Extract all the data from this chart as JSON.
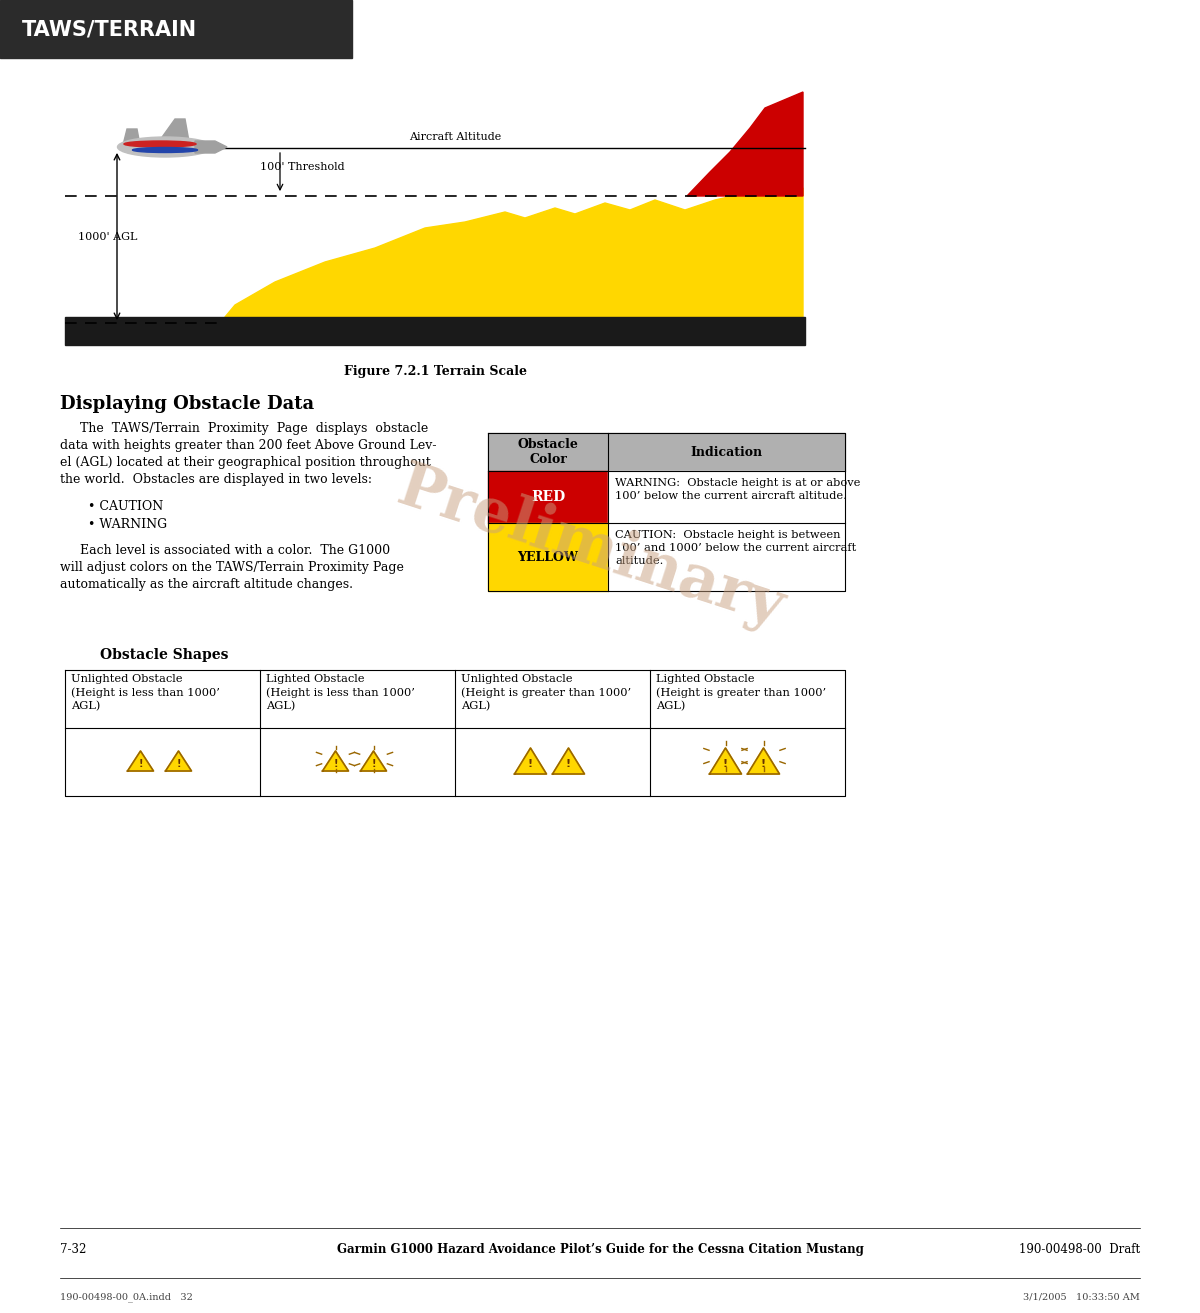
{
  "bg_color": "#ffffff",
  "header_bg": "#2b2b2b",
  "header_text": "TAWS/TERRAIN",
  "header_text_color": "#ffffff",
  "figure_caption": "Figure 7.2.1 Terrain Scale",
  "section_title": "Displaying Obstacle Data",
  "body_text1": "     The  TAWS/Terrain  Proximity  Page  displays  obstacle\ndata with heights greater than 200 feet Above Ground Lev-\nel (AGL) located at their geographical position throughout\nthe world.  Obstacles are displayed in two levels:",
  "bullet1": "• CAUTION",
  "bullet2": "• WARNING",
  "body_text2": "     Each level is associated with a color.  The G1000\nwill adjust colors on the TAWS/Terrain Proximity Page\nautomatically as the aircraft altitude changes.",
  "obstacle_section_title": "Obstacle Shapes",
  "terrain_yellow": "#FFD700",
  "terrain_red": "#CC0000",
  "terrain_black": "#1a1a1a",
  "aircraft_alt_label": "Aircraft Altitude",
  "threshold_label": "100' Threshold",
  "agl_label": "1000' AGL",
  "table_header_bg": "#b0b0b0",
  "table_red_bg": "#cc0000",
  "table_yellow_bg": "#FFD700",
  "table_col1_header": "Obstacle\nColor",
  "table_col2_header": "Indication",
  "table_row1_col1": "RED",
  "table_row1_col2": "WARNING:  Obstacle height is at or above\n100’ below the current aircraft altitude.",
  "table_row2_col1": "YELLOW",
  "table_row2_col2": "CAUTION:  Obstacle height is between\n100’ and 1000’ below the current aircraft\naltitude.",
  "obs_col1_header": "Unlighted Obstacle\n(Height is less than 1000’\nAGL)",
  "obs_col2_header": "Lighted Obstacle\n(Height is less than 1000’\nAGL)",
  "obs_col3_header": "Unlighted Obstacle\n(Height is greater than 1000’\nAGL)",
  "obs_col4_header": "Lighted Obstacle\n(Height is greater than 1000’\nAGL)",
  "footer_left": "7-32",
  "footer_center": "Garmin G1000 Hazard Avoidance Pilot’s Guide for the Cessna Citation Mustang",
  "footer_right": "190-00498-00  Draft",
  "footer2_left": "190-00498-00_0A.indd   32",
  "footer2_right": "3/1/2005   10:33:50 AM",
  "preliminary_text": "Preliminary",
  "preliminary_color": "#c8a080",
  "preliminary_alpha": 0.5
}
